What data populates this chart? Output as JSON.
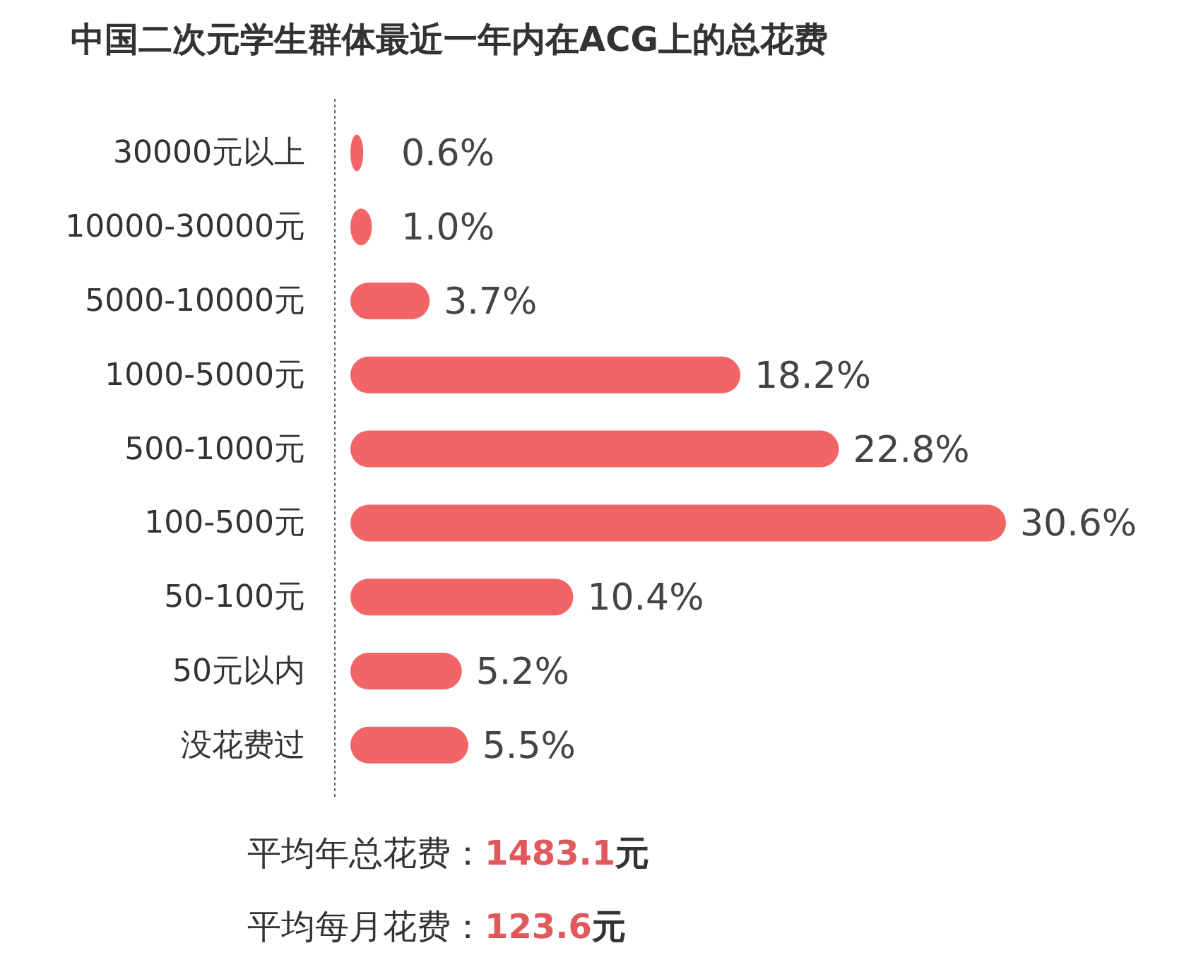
{
  "chart_data": {
    "type": "bar",
    "orientation": "horizontal",
    "title": "中国二次元学生群体最近一年内在ACG上的总花费",
    "categories": [
      "30000元以上",
      "10000-30000元",
      "5000-10000元",
      "1000-5000元",
      "500-1000元",
      "100-500元",
      "50-100元",
      "50元以内",
      "没花费过"
    ],
    "values": [
      0.6,
      1.0,
      3.7,
      18.2,
      22.8,
      30.6,
      10.4,
      5.2,
      5.5
    ],
    "value_labels": [
      "0.6%",
      "1.0%",
      "3.7%",
      "18.2%",
      "22.8%",
      "30.6%",
      "10.4%",
      "5.2%",
      "5.5%"
    ],
    "color": "#f26466",
    "annotations": [
      "平均年总花费：1483.1元",
      "平均每月花费：123.6元"
    ]
  }
}
